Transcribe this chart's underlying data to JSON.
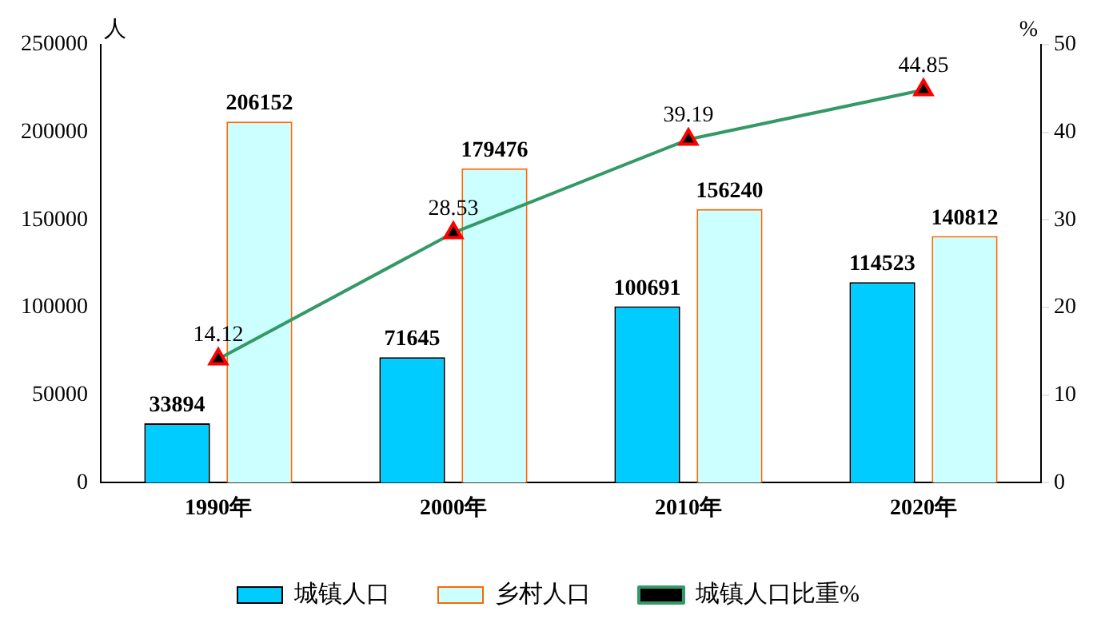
{
  "chart_data": {
    "type": "bar",
    "ylabel": "人",
    "y2label": "%",
    "categories": [
      "1990年",
      "2000年",
      "2010年",
      "2020年"
    ],
    "series": [
      {
        "name": "城镇人口",
        "color": "#00ccff",
        "values": [
          33894,
          71645,
          100691,
          114523
        ]
      },
      {
        "name": "乡村人口",
        "color": "#ccffff",
        "values": [
          206152,
          179476,
          156240,
          140812
        ]
      },
      {
        "name": "城镇人口比重%",
        "type": "line",
        "axis": "y2",
        "color": "#339966",
        "values": [
          14.12,
          28.53,
          39.19,
          44.85
        ]
      }
    ],
    "ylim": [
      0,
      250000
    ],
    "yticks": [
      0,
      50000,
      100000,
      150000,
      200000,
      250000
    ],
    "y2lim": [
      0,
      50
    ],
    "y2ticks": [
      0,
      10,
      20,
      30,
      40,
      50
    ],
    "grid": false,
    "legend": "bottom",
    "marker": "triangle",
    "data_labels": true
  }
}
